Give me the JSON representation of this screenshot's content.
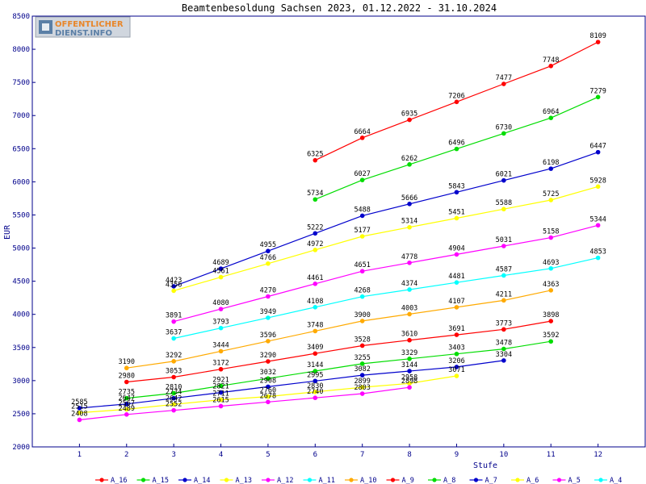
{
  "logo": {
    "line1": "OFFENTLICHER",
    "line2": "DIENST.INFO"
  },
  "chart_data": {
    "type": "line",
    "title": "Beamtenbesoldung Sachsen 2023, 01.12.2022 - 31.10.2024",
    "xlabel": "Stufe",
    "ylabel": "EUR",
    "xlim": [
      0,
      13
    ],
    "ylim": [
      2000,
      8500
    ],
    "xticks": [
      1,
      2,
      3,
      4,
      5,
      6,
      7,
      8,
      9,
      10,
      11,
      12
    ],
    "yticks": [
      2000,
      2500,
      3000,
      3500,
      4000,
      4500,
      5000,
      5500,
      6000,
      6500,
      7000,
      7500,
      8000,
      8500
    ],
    "grid": false,
    "legend_position": "bottom",
    "series": [
      {
        "name": "A_16",
        "color": "#ff0000",
        "x": [
          6,
          7,
          8,
          9,
          10,
          11,
          12
        ],
        "values": [
          6325,
          6664,
          6935,
          7206,
          7477,
          7748,
          8109
        ]
      },
      {
        "name": "A_15",
        "color": "#00dd00",
        "x": [
          6,
          7,
          8,
          9,
          10,
          11,
          12
        ],
        "values": [
          5734,
          6027,
          6262,
          6496,
          6730,
          6964,
          7279
        ]
      },
      {
        "name": "A_14",
        "color": "#0000cc",
        "x": [
          3,
          4,
          5,
          6,
          7,
          8,
          9,
          10,
          11,
          12
        ],
        "values": [
          4423,
          4689,
          4955,
          5222,
          5488,
          5666,
          5843,
          6021,
          6198,
          6447
        ]
      },
      {
        "name": "A_13",
        "color": "#ffff00",
        "x": [
          3,
          4,
          5,
          6,
          7,
          8,
          9,
          10,
          11,
          12
        ],
        "values": [
          4356,
          4561,
          4766,
          4972,
          5177,
          5314,
          5451,
          5588,
          5725,
          5928
        ]
      },
      {
        "name": "A_12",
        "color": "#ff00ff",
        "x": [
          3,
          4,
          5,
          6,
          7,
          8,
          9,
          10,
          11,
          12
        ],
        "values": [
          3891,
          4080,
          4270,
          4461,
          4651,
          4778,
          4904,
          5031,
          5158,
          5344
        ]
      },
      {
        "name": "A_11",
        "color": "#00ffff",
        "x": [
          3,
          4,
          5,
          6,
          7,
          8,
          9,
          10,
          11,
          12
        ],
        "values": [
          3637,
          3793,
          3949,
          4108,
          4268,
          4374,
          4481,
          4587,
          4693,
          4853
        ]
      },
      {
        "name": "A_10",
        "color": "#ffaa00",
        "x": [
          2,
          3,
          4,
          5,
          6,
          7,
          8,
          9,
          10,
          11
        ],
        "values": [
          3190,
          3292,
          3444,
          3596,
          3748,
          3900,
          4003,
          4107,
          4211,
          4363
        ]
      },
      {
        "name": "A_9",
        "color": "#ff0000",
        "x": [
          2,
          3,
          4,
          5,
          6,
          7,
          8,
          9,
          10,
          11
        ],
        "values": [
          2980,
          3053,
          3172,
          3290,
          3409,
          3528,
          3610,
          3691,
          3773,
          3898
        ]
      },
      {
        "name": "A_8",
        "color": "#00dd00",
        "x": [
          2,
          3,
          4,
          5,
          6,
          7,
          8,
          9,
          10,
          11
        ],
        "values": [
          2735,
          2810,
          2921,
          3032,
          3144,
          3255,
          3329,
          3403,
          3478,
          3592
        ]
      },
      {
        "name": "A_7",
        "color": "#0000cc",
        "x": [
          1,
          2,
          3,
          4,
          5,
          6,
          7,
          8,
          9,
          10
        ],
        "values": [
          2585,
          2647,
          2734,
          2821,
          2908,
          2995,
          3082,
          3144,
          3206,
          3304
        ]
      },
      {
        "name": "A_6",
        "color": "#ffff00",
        "x": [
          1,
          2,
          3,
          4,
          5,
          6,
          7,
          8,
          9
        ],
        "values": [
          2515,
          2567,
          2642,
          2711,
          2760,
          2830,
          2899,
          2958,
          3071
        ]
      },
      {
        "name": "A_5",
        "color": "#ff00ff",
        "x": [
          1,
          2,
          3,
          4,
          5,
          6,
          7,
          8
        ],
        "values": [
          2408,
          2489,
          2552,
          2615,
          2678,
          2740,
          2803,
          2898
        ]
      },
      {
        "name": "A_4",
        "color": "#00ffff",
        "x": [],
        "values": []
      }
    ]
  }
}
